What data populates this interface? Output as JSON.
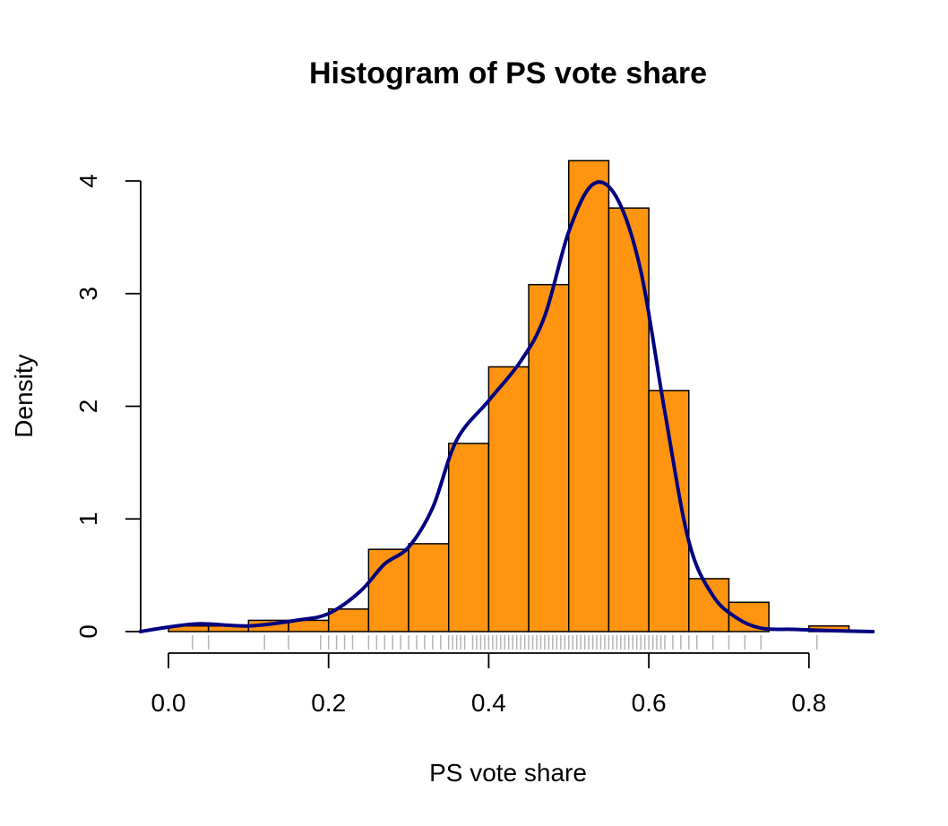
{
  "chart_data": {
    "type": "bar",
    "title": "Histogram of PS vote share",
    "xlabel": "PS vote share",
    "ylabel": "Density",
    "xlim": [
      -0.04,
      0.9
    ],
    "ylim": [
      0,
      4.2
    ],
    "x_ticks": [
      "0.0",
      "0.2",
      "0.4",
      "0.6",
      "0.8"
    ],
    "y_ticks": [
      "0",
      "1",
      "2",
      "3",
      "4"
    ],
    "grid": false,
    "bin_edges": [
      0.0,
      0.05,
      0.1,
      0.15,
      0.2,
      0.25,
      0.3,
      0.35,
      0.4,
      0.45,
      0.5,
      0.55,
      0.6,
      0.65,
      0.7,
      0.75,
      0.8,
      0.85
    ],
    "values": [
      0.05,
      0.05,
      0.1,
      0.1,
      0.2,
      0.73,
      0.78,
      1.67,
      2.35,
      3.08,
      4.18,
      3.76,
      2.14,
      0.47,
      0.26,
      0.0,
      0.05
    ],
    "density_curve": {
      "x": [
        -0.035,
        0.0,
        0.04,
        0.1,
        0.16,
        0.2,
        0.24,
        0.27,
        0.3,
        0.33,
        0.36,
        0.4,
        0.44,
        0.47,
        0.5,
        0.53,
        0.56,
        0.59,
        0.62,
        0.65,
        0.68,
        0.71,
        0.74,
        0.78,
        0.82,
        0.88
      ],
      "y": [
        0.0,
        0.04,
        0.07,
        0.05,
        0.1,
        0.16,
        0.36,
        0.6,
        0.75,
        1.1,
        1.7,
        2.05,
        2.4,
        2.8,
        3.55,
        3.97,
        3.85,
        3.2,
        1.95,
        0.8,
        0.32,
        0.12,
        0.03,
        0.02,
        0.01,
        0.0
      ]
    },
    "rug_x": [
      0.03,
      0.05,
      0.12,
      0.15,
      0.19,
      0.2,
      0.21,
      0.22,
      0.23,
      0.25,
      0.26,
      0.27,
      0.28,
      0.29,
      0.3,
      0.31,
      0.32,
      0.33,
      0.34,
      0.35,
      0.355,
      0.36,
      0.365,
      0.37,
      0.38,
      0.385,
      0.39,
      0.395,
      0.4,
      0.405,
      0.41,
      0.415,
      0.42,
      0.425,
      0.43,
      0.435,
      0.44,
      0.445,
      0.45,
      0.455,
      0.46,
      0.465,
      0.47,
      0.475,
      0.48,
      0.485,
      0.49,
      0.495,
      0.5,
      0.505,
      0.51,
      0.515,
      0.52,
      0.525,
      0.53,
      0.535,
      0.54,
      0.545,
      0.55,
      0.555,
      0.56,
      0.565,
      0.57,
      0.575,
      0.58,
      0.585,
      0.59,
      0.595,
      0.6,
      0.605,
      0.61,
      0.615,
      0.62,
      0.63,
      0.64,
      0.65,
      0.66,
      0.68,
      0.7,
      0.72,
      0.74,
      0.81
    ],
    "colors": {
      "bar_fill": "#ff9410",
      "bar_stroke": "#000000",
      "curve": "#000080",
      "rug": "#b4b4b4",
      "axis": "#000000"
    }
  }
}
